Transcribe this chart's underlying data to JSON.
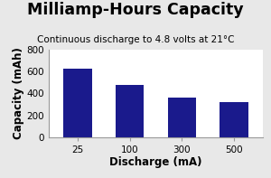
{
  "title": "Milliamp-Hours Capacity",
  "subtitle": "Continuous discharge to 4.8 volts at 21°C",
  "xlabel": "Discharge (mA)",
  "ylabel": "Capacity (mAh)",
  "categories": [
    "25",
    "100",
    "300",
    "500"
  ],
  "values": [
    625,
    475,
    365,
    320
  ],
  "bar_color": "#1a1a8c",
  "ylim": [
    0,
    800
  ],
  "yticks": [
    0,
    200,
    400,
    600,
    800
  ],
  "background_color": "#e8e8e8",
  "plot_bg_color": "#ffffff",
  "title_fontsize": 12.5,
  "subtitle_fontsize": 7.5,
  "axis_label_fontsize": 8.5,
  "tick_fontsize": 7.5,
  "bar_width": 0.55
}
